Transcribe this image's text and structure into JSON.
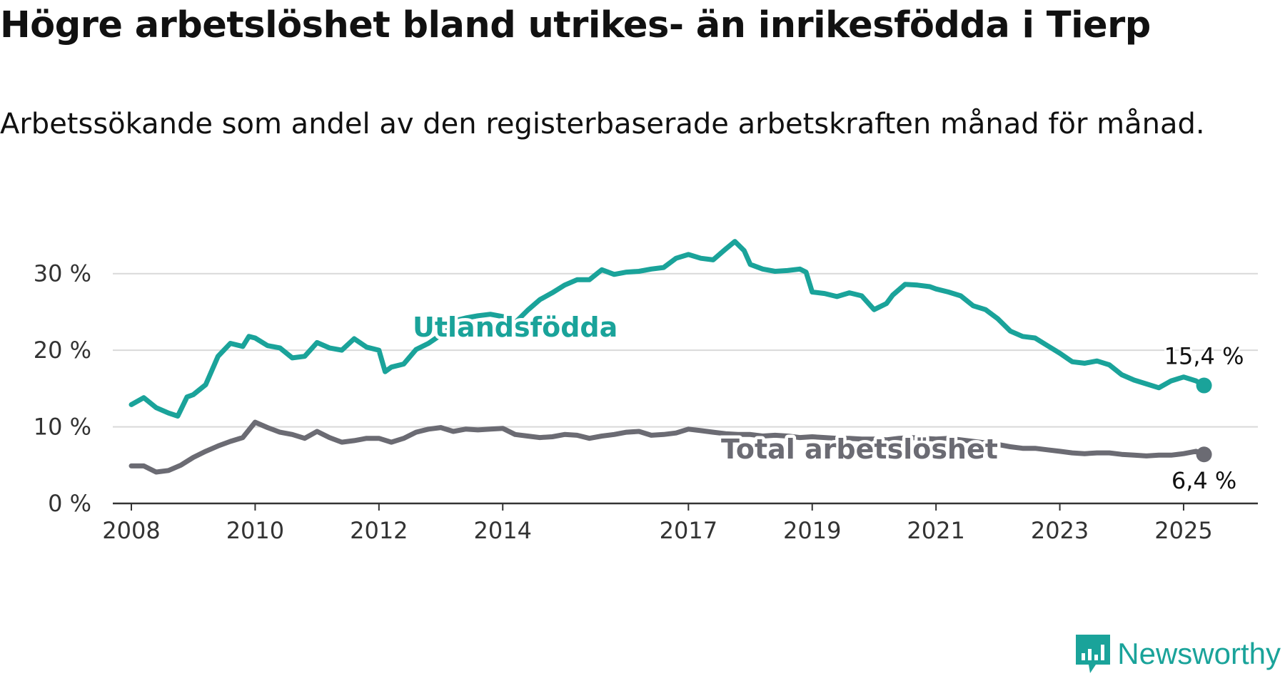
{
  "title": "Högre arbetslöshet bland utrikes- än inrikesfödda i Tierp",
  "subtitle": "Arbetssökande som andel av den registerbaserade arbetskraften månad för månad.",
  "brand": {
    "name": "Newsworthy",
    "icon": "newsworthy-logo-icon",
    "color": "#1aa39a"
  },
  "chart_data": {
    "type": "line",
    "ylim": [
      0,
      35
    ],
    "yticks": [
      0,
      10,
      20,
      30
    ],
    "ytick_labels": [
      "0 %",
      "10 %",
      "20 %",
      "30 %"
    ],
    "xlim": [
      2007.7,
      2026.2
    ],
    "xticks": [
      2008,
      2010,
      2012,
      2014,
      2017,
      2019,
      2021,
      2023,
      2025
    ],
    "xtick_labels": [
      "2008",
      "2010",
      "2012",
      "2014",
      "2017",
      "2019",
      "2021",
      "2023",
      "2025"
    ],
    "grid": true,
    "series": [
      {
        "name": "Utlandsfödda",
        "color": "#1aa39a",
        "end_label": "15,4 %",
        "x": [
          2008.0,
          2008.2,
          2008.4,
          2008.6,
          2008.75,
          2008.9,
          2009.0,
          2009.2,
          2009.4,
          2009.6,
          2009.8,
          2009.9,
          2010.0,
          2010.2,
          2010.4,
          2010.6,
          2010.8,
          2011.0,
          2011.2,
          2011.4,
          2011.6,
          2011.8,
          2012.0,
          2012.1,
          2012.2,
          2012.4,
          2012.6,
          2012.8,
          2013.0,
          2013.2,
          2013.4,
          2013.6,
          2013.8,
          2014.0,
          2014.2,
          2014.4,
          2014.6,
          2014.8,
          2015.0,
          2015.2,
          2015.4,
          2015.6,
          2015.8,
          2016.0,
          2016.2,
          2016.4,
          2016.6,
          2016.8,
          2017.0,
          2017.2,
          2017.4,
          2017.6,
          2017.75,
          2017.9,
          2018.0,
          2018.2,
          2018.4,
          2018.6,
          2018.8,
          2018.9,
          2019.0,
          2019.2,
          2019.4,
          2019.6,
          2019.8,
          2020.0,
          2020.2,
          2020.3,
          2020.5,
          2020.7,
          2020.9,
          2021.0,
          2021.2,
          2021.4,
          2021.6,
          2021.8,
          2022.0,
          2022.2,
          2022.4,
          2022.6,
          2022.8,
          2023.0,
          2023.2,
          2023.4,
          2023.6,
          2023.8,
          2024.0,
          2024.2,
          2024.4,
          2024.6,
          2024.8,
          2025.0,
          2025.2,
          2025.33
        ],
        "y": [
          12.9,
          13.8,
          12.5,
          11.8,
          11.4,
          13.9,
          14.2,
          15.5,
          19.2,
          20.9,
          20.5,
          21.8,
          21.6,
          20.6,
          20.3,
          19.0,
          19.2,
          21.0,
          20.3,
          20.0,
          21.5,
          20.4,
          20.0,
          17.2,
          17.8,
          18.2,
          20.1,
          20.9,
          22.0,
          23.8,
          24.2,
          24.5,
          24.7,
          24.4,
          23.6,
          25.2,
          26.6,
          27.5,
          28.5,
          29.2,
          29.2,
          30.5,
          29.9,
          30.2,
          30.3,
          30.6,
          30.8,
          32.0,
          32.5,
          32.0,
          31.8,
          33.2,
          34.2,
          33.0,
          31.2,
          30.6,
          30.3,
          30.4,
          30.6,
          30.2,
          27.6,
          27.4,
          27.0,
          27.5,
          27.1,
          25.3,
          26.1,
          27.2,
          28.6,
          28.5,
          28.3,
          28.0,
          27.6,
          27.1,
          25.8,
          25.3,
          24.1,
          22.5,
          21.8,
          21.6,
          20.6,
          19.6,
          18.5,
          18.3,
          18.6,
          18.1,
          16.8,
          16.1,
          15.6,
          15.1,
          16.0,
          16.5,
          16.0,
          15.4
        ]
      },
      {
        "name": "Total arbetslöshet",
        "color": "#6b6b73",
        "end_label": "6,4 %",
        "x": [
          2008.0,
          2008.2,
          2008.4,
          2008.6,
          2008.8,
          2009.0,
          2009.2,
          2009.4,
          2009.6,
          2009.8,
          2010.0,
          2010.2,
          2010.4,
          2010.6,
          2010.8,
          2011.0,
          2011.2,
          2011.4,
          2011.6,
          2011.8,
          2012.0,
          2012.2,
          2012.4,
          2012.6,
          2012.8,
          2013.0,
          2013.2,
          2013.4,
          2013.6,
          2013.8,
          2014.0,
          2014.2,
          2014.4,
          2014.6,
          2014.8,
          2015.0,
          2015.2,
          2015.4,
          2015.6,
          2015.8,
          2016.0,
          2016.2,
          2016.4,
          2016.6,
          2016.8,
          2017.0,
          2017.2,
          2017.4,
          2017.6,
          2017.8,
          2018.0,
          2018.2,
          2018.4,
          2018.6,
          2018.8,
          2019.0,
          2019.2,
          2019.4,
          2019.6,
          2019.8,
          2020.0,
          2020.2,
          2020.4,
          2020.6,
          2020.8,
          2021.0,
          2021.2,
          2021.4,
          2021.6,
          2021.8,
          2022.0,
          2022.2,
          2022.4,
          2022.6,
          2022.8,
          2023.0,
          2023.2,
          2023.4,
          2023.6,
          2023.8,
          2024.0,
          2024.2,
          2024.4,
          2024.6,
          2024.8,
          2025.0,
          2025.2,
          2025.33
        ],
        "y": [
          4.9,
          4.9,
          4.1,
          4.3,
          5.0,
          6.0,
          6.8,
          7.5,
          8.1,
          8.6,
          10.6,
          9.9,
          9.3,
          9.0,
          8.5,
          9.4,
          8.6,
          8.0,
          8.2,
          8.5,
          8.5,
          8.0,
          8.5,
          9.3,
          9.7,
          9.9,
          9.4,
          9.7,
          9.6,
          9.7,
          9.8,
          9.0,
          8.8,
          8.6,
          8.7,
          9.0,
          8.9,
          8.5,
          8.8,
          9.0,
          9.3,
          9.4,
          8.9,
          9.0,
          9.2,
          9.7,
          9.5,
          9.3,
          9.1,
          9.0,
          9.0,
          8.8,
          8.9,
          8.8,
          8.6,
          8.7,
          8.6,
          8.5,
          8.5,
          8.4,
          8.4,
          8.3,
          8.5,
          8.6,
          8.5,
          8.4,
          8.5,
          8.3,
          8.1,
          7.9,
          7.7,
          7.4,
          7.2,
          7.2,
          7.0,
          6.8,
          6.6,
          6.5,
          6.6,
          6.6,
          6.4,
          6.3,
          6.2,
          6.3,
          6.3,
          6.5,
          6.8,
          6.4
        ]
      }
    ],
    "annotations": [
      "Utlandsfödda",
      "Total arbetslöshet"
    ]
  }
}
